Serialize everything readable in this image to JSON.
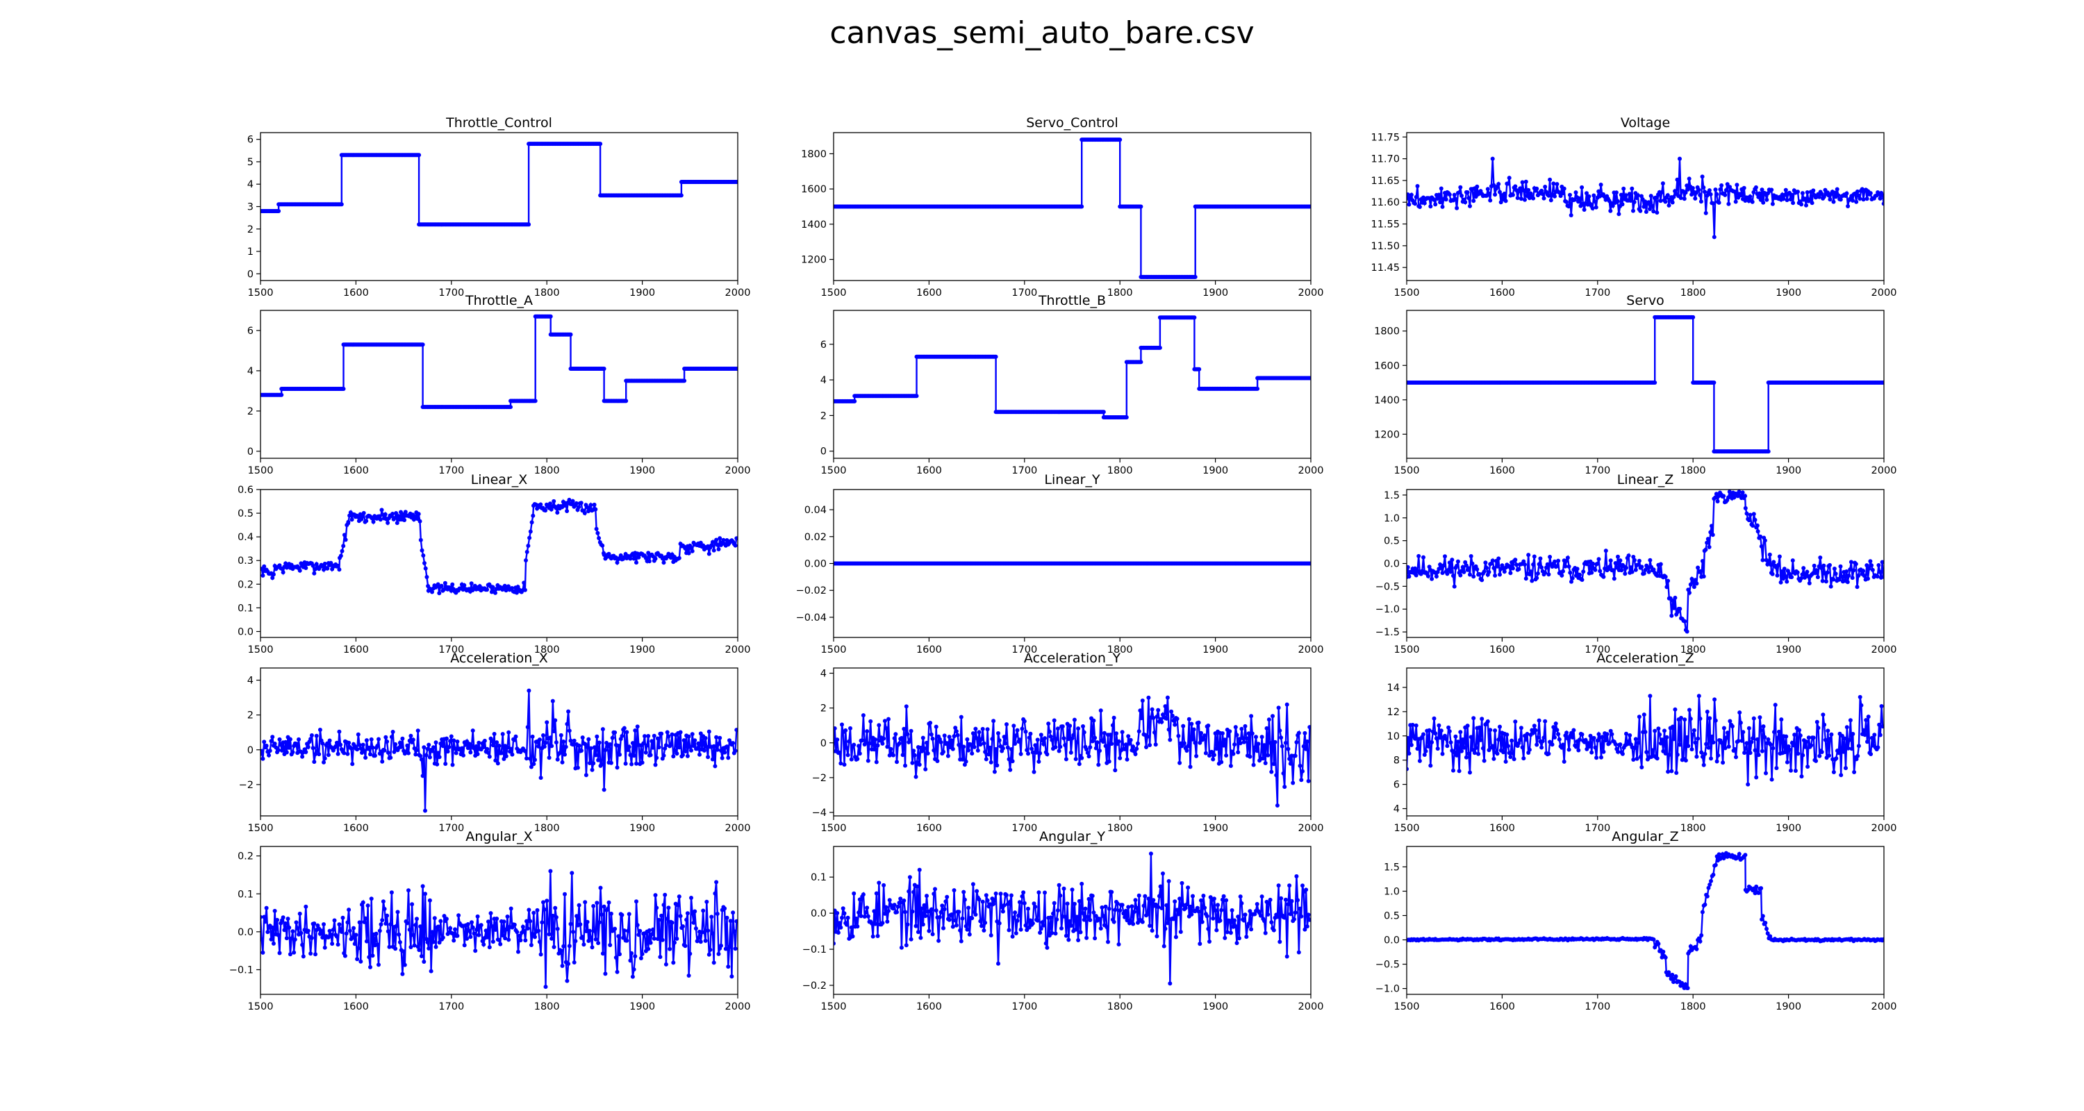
{
  "figure": {
    "title": "canvas_semi_auto_bare.csv"
  },
  "style": {
    "line_color": "#0000ff"
  },
  "chart_data": [
    {
      "type": "line",
      "title": "Throttle_Control",
      "xlim": [
        1500,
        2000
      ],
      "ylim": [
        -0.3,
        6.3
      ],
      "xticks": [
        1500,
        1600,
        1700,
        1800,
        1900,
        2000
      ],
      "yticks": [
        0,
        1,
        2,
        3,
        4,
        5,
        6
      ],
      "series": [
        {
          "kind": "steps",
          "points": [
            [
              1500,
              2.8
            ],
            [
              1519,
              3.1
            ],
            [
              1585,
              5.3
            ],
            [
              1666,
              2.2
            ],
            [
              1781,
              5.8
            ],
            [
              1856,
              3.5
            ],
            [
              1941,
              4.1
            ],
            [
              2000,
              4.1
            ]
          ]
        }
      ]
    },
    {
      "type": "line",
      "title": "Servo_Control",
      "xlim": [
        1500,
        2000
      ],
      "ylim": [
        1080,
        1920
      ],
      "xticks": [
        1500,
        1600,
        1700,
        1800,
        1900,
        2000
      ],
      "yticks": [
        1200,
        1400,
        1600,
        1800
      ],
      "series": [
        {
          "kind": "steps",
          "points": [
            [
              1500,
              1500
            ],
            [
              1760,
              1880
            ],
            [
              1800,
              1500
            ],
            [
              1822,
              1100
            ],
            [
              1879,
              1500
            ],
            [
              2000,
              1500
            ]
          ]
        }
      ]
    },
    {
      "type": "line",
      "title": "Voltage",
      "xlim": [
        1500,
        2000
      ],
      "ylim": [
        11.42,
        11.76
      ],
      "xticks": [
        1500,
        1600,
        1700,
        1800,
        1900,
        2000
      ],
      "yticks": [
        11.45,
        11.5,
        11.55,
        11.6,
        11.65,
        11.7,
        11.75
      ],
      "series": [
        {
          "kind": "noise",
          "seed": 3,
          "segments": [
            [
              1500,
              1585,
              11.605,
              11.615,
              0.012
            ],
            [
              1585,
              1666,
              11.625,
              11.625,
              0.012
            ],
            [
              1666,
              1781,
              11.605,
              11.61,
              0.014
            ],
            [
              1781,
              1856,
              11.625,
              11.62,
              0.015
            ],
            [
              1856,
              2000,
              11.615,
              11.615,
              0.01
            ]
          ],
          "spikes": [
            [
              1590,
              11.7
            ],
            [
              1786,
              11.7
            ],
            [
              1822,
              11.52
            ],
            [
              1672,
              11.57
            ],
            [
              1745,
              11.58
            ],
            [
              1813,
              11.575
            ]
          ]
        }
      ]
    },
    {
      "type": "line",
      "title": "Throttle_A",
      "xlim": [
        1500,
        2000
      ],
      "ylim": [
        -0.35,
        7.0
      ],
      "xticks": [
        1500,
        1600,
        1700,
        1800,
        1900,
        2000
      ],
      "yticks": [
        0,
        2,
        4,
        6
      ],
      "series": [
        {
          "kind": "steps",
          "points": [
            [
              1500,
              2.8
            ],
            [
              1522,
              3.1
            ],
            [
              1587,
              5.3
            ],
            [
              1670,
              2.2
            ],
            [
              1762,
              2.5
            ],
            [
              1788,
              6.7
            ],
            [
              1804,
              5.8
            ],
            [
              1825,
              4.1
            ],
            [
              1860,
              2.5
            ],
            [
              1883,
              3.5
            ],
            [
              1944,
              4.1
            ],
            [
              2000,
              4.1
            ]
          ]
        }
      ]
    },
    {
      "type": "line",
      "title": "Throttle_B",
      "xlim": [
        1500,
        2000
      ],
      "ylim": [
        -0.4,
        7.9
      ],
      "xticks": [
        1500,
        1600,
        1700,
        1800,
        1900,
        2000
      ],
      "yticks": [
        0,
        2,
        4,
        6
      ],
      "series": [
        {
          "kind": "steps",
          "points": [
            [
              1500,
              2.8
            ],
            [
              1522,
              3.1
            ],
            [
              1587,
              5.3
            ],
            [
              1670,
              2.2
            ],
            [
              1783,
              1.9
            ],
            [
              1807,
              5.0
            ],
            [
              1822,
              5.8
            ],
            [
              1842,
              7.5
            ],
            [
              1878,
              4.6
            ],
            [
              1883,
              3.5
            ],
            [
              1944,
              4.1
            ],
            [
              2000,
              4.1
            ]
          ]
        }
      ]
    },
    {
      "type": "line",
      "title": "Servo",
      "xlim": [
        1500,
        2000
      ],
      "ylim": [
        1060,
        1920
      ],
      "xticks": [
        1500,
        1600,
        1700,
        1800,
        1900,
        2000
      ],
      "yticks": [
        1200,
        1400,
        1600,
        1800
      ],
      "series": [
        {
          "kind": "steps",
          "points": [
            [
              1500,
              1500
            ],
            [
              1760,
              1880
            ],
            [
              1800,
              1500
            ],
            [
              1822,
              1100
            ],
            [
              1879,
              1500
            ],
            [
              2000,
              1500
            ]
          ]
        }
      ]
    },
    {
      "type": "line",
      "title": "Linear_X",
      "xlim": [
        1500,
        2000
      ],
      "ylim": [
        -0.025,
        0.6
      ],
      "xticks": [
        1500,
        1600,
        1700,
        1800,
        1900,
        2000
      ],
      "yticks": [
        0,
        0.1,
        0.2,
        0.3,
        0.4,
        0.5,
        0.6
      ],
      "series": [
        {
          "kind": "noise",
          "seed": 7,
          "segments": [
            [
              1500,
              1515,
              0.26,
              0.24,
              0.01
            ],
            [
              1515,
              1583,
              0.27,
              0.28,
              0.012
            ],
            [
              1583,
              1592,
              0.3,
              0.46,
              0.01
            ],
            [
              1592,
              1668,
              0.48,
              0.49,
              0.015
            ],
            [
              1668,
              1676,
              0.38,
              0.2,
              0.01
            ],
            [
              1676,
              1778,
              0.18,
              0.185,
              0.01
            ],
            [
              1778,
              1786,
              0.3,
              0.5,
              0.01
            ],
            [
              1786,
              1852,
              0.53,
              0.525,
              0.012
            ],
            [
              1852,
              1860,
              0.42,
              0.34,
              0.01
            ],
            [
              1860,
              1940,
              0.32,
              0.315,
              0.012
            ],
            [
              1940,
              2000,
              0.36,
              0.37,
              0.015
            ]
          ],
          "spikes": []
        }
      ]
    },
    {
      "type": "line",
      "title": "Linear_Y",
      "xlim": [
        1500,
        2000
      ],
      "ylim": [
        -0.055,
        0.055
      ],
      "xticks": [
        1500,
        1600,
        1700,
        1800,
        1900,
        2000
      ],
      "yticks": [
        -0.04,
        -0.02,
        0,
        0.02,
        0.04
      ],
      "series": [
        {
          "kind": "steps",
          "points": [
            [
              1500,
              0
            ],
            [
              2000,
              0
            ]
          ]
        }
      ]
    },
    {
      "type": "line",
      "title": "Linear_Z",
      "xlim": [
        1500,
        2000
      ],
      "ylim": [
        -1.62,
        1.62
      ],
      "xticks": [
        1500,
        1600,
        1700,
        1800,
        1900,
        2000
      ],
      "yticks": [
        -1.5,
        -1,
        -0.5,
        0,
        0.5,
        1,
        1.5
      ],
      "series": [
        {
          "kind": "noise",
          "seed": 11,
          "segments": [
            [
              1500,
              1760,
              -0.12,
              -0.12,
              0.14
            ],
            [
              1760,
              1775,
              -0.2,
              -0.4,
              0.12
            ],
            [
              1775,
              1795,
              -0.8,
              -1.45,
              0.12
            ],
            [
              1795,
              1812,
              -0.6,
              -0.1,
              0.15
            ],
            [
              1812,
              1822,
              0.3,
              0.8,
              0.12
            ],
            [
              1822,
              1855,
              1.45,
              1.5,
              0.06
            ],
            [
              1855,
              1868,
              1.1,
              0.9,
              0.1
            ],
            [
              1868,
              1882,
              0.6,
              0.0,
              0.12
            ],
            [
              1882,
              2000,
              -0.2,
              -0.2,
              0.14
            ]
          ],
          "spikes": []
        }
      ]
    },
    {
      "type": "line",
      "title": "Acceleration_X",
      "xlim": [
        1500,
        2000
      ],
      "ylim": [
        -3.8,
        4.7
      ],
      "xticks": [
        1500,
        1600,
        1700,
        1800,
        1900,
        2000
      ],
      "yticks": [
        -2,
        0,
        2,
        4
      ],
      "series": [
        {
          "kind": "noise",
          "seed": 19,
          "segments": [
            [
              1500,
              1780,
              0.15,
              0.15,
              0.45
            ],
            [
              1780,
              1900,
              0.1,
              0.1,
              0.75
            ],
            [
              1900,
              2000,
              0.1,
              0.1,
              0.5
            ]
          ],
          "spikes": [
            [
              1672,
              -3.5
            ],
            [
              1781,
              3.4
            ],
            [
              1670,
              -1.5
            ],
            [
              1806,
              2.8
            ],
            [
              1860,
              -2.3
            ],
            [
              1822,
              2.2
            ]
          ]
        }
      ]
    },
    {
      "type": "line",
      "title": "Acceleration_Y",
      "xlim": [
        1500,
        2000
      ],
      "ylim": [
        -4.2,
        4.3
      ],
      "xticks": [
        1500,
        1600,
        1700,
        1800,
        1900,
        2000
      ],
      "yticks": [
        -4,
        -2,
        0,
        2,
        4
      ],
      "series": [
        {
          "kind": "noise",
          "seed": 23,
          "segments": [
            [
              1500,
              1820,
              0.0,
              0.0,
              0.75
            ],
            [
              1820,
              1860,
              1.0,
              1.0,
              0.7
            ],
            [
              1860,
              1950,
              0.0,
              0.0,
              0.7
            ],
            [
              1950,
              2000,
              -0.5,
              -0.5,
              1.3
            ]
          ],
          "spikes": [
            [
              1965,
              -3.6
            ],
            [
              1975,
              2.2
            ],
            [
              1998,
              -2.2
            ],
            [
              1850,
              2.6
            ]
          ]
        }
      ]
    },
    {
      "type": "line",
      "title": "Acceleration_Z",
      "xlim": [
        1500,
        2000
      ],
      "ylim": [
        3.4,
        15.6
      ],
      "xticks": [
        1500,
        1600,
        1700,
        1800,
        1900,
        2000
      ],
      "yticks": [
        4,
        6,
        8,
        10,
        12,
        14
      ],
      "series": [
        {
          "kind": "noise",
          "seed": 31,
          "segments": [
            [
              1500,
              1660,
              9.5,
              9.5,
              1.0
            ],
            [
              1660,
              1740,
              9.5,
              9.5,
              0.6
            ],
            [
              1740,
              2000,
              9.5,
              9.5,
              1.2
            ]
          ],
          "spikes": [
            [
              1806,
              13.3
            ],
            [
              1822,
              13.0
            ],
            [
              1858,
              6.0
            ],
            [
              1755,
              13.3
            ],
            [
              1882,
              6.4
            ],
            [
              1975,
              13.2
            ]
          ]
        }
      ]
    },
    {
      "type": "line",
      "title": "Angular_X",
      "xlim": [
        1500,
        2000
      ],
      "ylim": [
        -0.165,
        0.225
      ],
      "xticks": [
        1500,
        1600,
        1700,
        1800,
        1900,
        2000
      ],
      "yticks": [
        -0.1,
        0,
        0.1,
        0.2
      ],
      "series": [
        {
          "kind": "noise",
          "seed": 41,
          "segments": [
            [
              1500,
              1600,
              0.0,
              0.0,
              0.03
            ],
            [
              1600,
              1680,
              0.0,
              0.0,
              0.055
            ],
            [
              1680,
              1790,
              0.0,
              0.0,
              0.025
            ],
            [
              1790,
              2000,
              0.0,
              0.0,
              0.05
            ]
          ],
          "spikes": [
            [
              1799,
              -0.145
            ],
            [
              1804,
              0.16
            ],
            [
              1826,
              0.155
            ],
            [
              1670,
              0.12
            ],
            [
              1820,
              -0.08
            ]
          ]
        }
      ]
    },
    {
      "type": "line",
      "title": "Angular_Y",
      "xlim": [
        1500,
        2000
      ],
      "ylim": [
        -0.225,
        0.185
      ],
      "xticks": [
        1500,
        1600,
        1700,
        1800,
        1900,
        2000
      ],
      "yticks": [
        -0.2,
        -0.1,
        0,
        0.1
      ],
      "series": [
        {
          "kind": "noise",
          "seed": 53,
          "segments": [
            [
              1500,
              2000,
              0.0,
              0.0,
              0.04
            ]
          ],
          "spikes": [
            [
              1833,
              0.165
            ],
            [
              1853,
              -0.195
            ],
            [
              1672,
              -0.14
            ],
            [
              1590,
              0.12
            ],
            [
              1845,
              0.11
            ],
            [
              1975,
              -0.12
            ]
          ]
        }
      ]
    },
    {
      "type": "line",
      "title": "Angular_Z",
      "xlim": [
        1500,
        2000
      ],
      "ylim": [
        -1.12,
        1.92
      ],
      "xticks": [
        1500,
        1600,
        1700,
        1800,
        1900,
        2000
      ],
      "yticks": [
        -1,
        -0.5,
        0,
        0.5,
        1,
        1.5
      ],
      "series": [
        {
          "kind": "noise",
          "seed": 61,
          "segments": [
            [
              1500,
              1760,
              0.0,
              0.02,
              0.01
            ],
            [
              1760,
              1772,
              -0.05,
              -0.4,
              0.05
            ],
            [
              1772,
              1795,
              -0.7,
              -1.0,
              0.05
            ],
            [
              1795,
              1810,
              -0.3,
              0.1,
              0.08
            ],
            [
              1810,
              1826,
              0.6,
              1.7,
              0.08
            ],
            [
              1826,
              1855,
              1.72,
              1.7,
              0.04
            ],
            [
              1855,
              1872,
              1.05,
              1.0,
              0.04
            ],
            [
              1872,
              1882,
              0.5,
              0.05,
              0.06
            ],
            [
              1882,
              2000,
              0.0,
              0.0,
              0.01
            ]
          ],
          "spikes": []
        }
      ]
    }
  ]
}
